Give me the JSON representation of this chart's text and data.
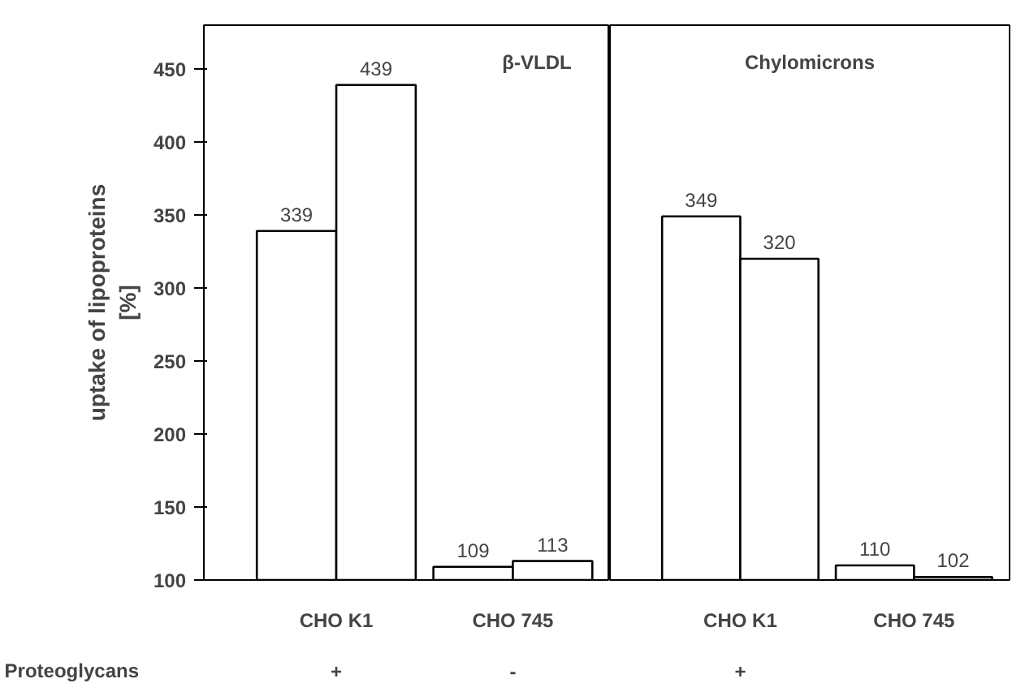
{
  "chart_data": [
    {
      "type": "bar",
      "title": "β-VLDL",
      "ylabel": "uptake of lipoproteins\n[%]",
      "categories": [
        "CHO K1",
        "CHO 745"
      ],
      "series": [
        {
          "color": "#ffffff",
          "values": [
            339,
            109
          ]
        },
        {
          "color": "#ffffff",
          "values": [
            439,
            113
          ]
        }
      ],
      "ylim": [
        100,
        480
      ],
      "yticks": [
        100,
        150,
        200,
        250,
        300,
        350,
        400,
        450
      ],
      "data_labels": true,
      "grid": false,
      "annotations": [
        "Proteoglycans",
        "+",
        "-"
      ]
    },
    {
      "type": "bar",
      "title": "Chylomicrons",
      "categories": [
        "CHO K1",
        "CHO 745"
      ],
      "series": [
        {
          "color": "#ffffff",
          "values": [
            349,
            110
          ]
        },
        {
          "color": "#ffffff",
          "values": [
            320,
            102
          ]
        }
      ],
      "ylim": [
        100,
        480
      ],
      "yticks": [
        100,
        150,
        200,
        250,
        300,
        350,
        400,
        450
      ],
      "data_labels": true,
      "grid": false,
      "tick_labels": "x",
      "annotations": [
        "+"
      ]
    }
  ]
}
